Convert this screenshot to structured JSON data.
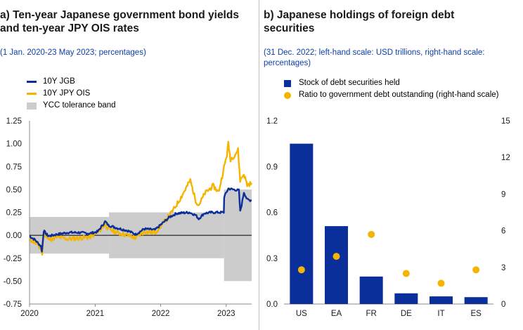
{
  "colors": {
    "jgb": "#0b2f9a",
    "ois": "#f5b400",
    "band": "#cccccc",
    "bar": "#0b2f9a",
    "dot": "#f5b400",
    "subtitle": "#0b3fa6"
  },
  "panel_a": {
    "title_line1": "a) Ten-year Japanese government bond yields",
    "title_line2": "and ten-year JPY OIS rates",
    "subtitle": "(1 Jan. 2020-23 May 2023; percentages)",
    "legend": [
      {
        "label": "10Y JGB",
        "kind": "line",
        "color": "#0b2f9a"
      },
      {
        "label": "10Y JPY OIS",
        "kind": "line",
        "color": "#f5b400"
      },
      {
        "label": "YCC tolerance band",
        "kind": "box",
        "color": "#cccccc"
      }
    ]
  },
  "panel_b": {
    "title_line1": "b) Japanese holdings of foreign debt",
    "title_line2": "securities",
    "subtitle_line1": "(31 Dec. 2022; left-hand scale: USD trillions, right-hand scale:",
    "subtitle_line2": "percentages)",
    "legend": [
      {
        "label": "Stock of debt securities held",
        "kind": "box",
        "color": "#0b2f9a"
      },
      {
        "label": "Ratio to government debt outstanding (right-hand scale)",
        "kind": "dot",
        "color": "#f5b400"
      }
    ]
  },
  "chart_data": [
    {
      "type": "line",
      "x_ticks": [
        "2020",
        "2021",
        "2022",
        "2023"
      ],
      "y_ticks": [
        "1.25",
        "1.00",
        "0.75",
        "0.50",
        "0.25",
        "0.00",
        "-0.25",
        "-0.50",
        "-0.75"
      ],
      "xlim": [
        "2020-01-01",
        "2023-05-23"
      ],
      "ylim": [
        -0.75,
        1.25
      ],
      "band": [
        {
          "from": "2020-01-01",
          "to": "2021-03-19",
          "low": -0.2,
          "high": 0.2
        },
        {
          "from": "2021-03-19",
          "to": "2022-12-20",
          "low": -0.25,
          "high": 0.25
        },
        {
          "from": "2022-12-20",
          "to": "2023-05-23",
          "low": -0.5,
          "high": 0.5
        }
      ],
      "series": [
        {
          "name": "10Y JGB",
          "points": [
            [
              "2020-01-01",
              -0.01
            ],
            [
              "2020-02-01",
              -0.05
            ],
            [
              "2020-03-05",
              -0.12
            ],
            [
              "2020-03-10",
              -0.18
            ],
            [
              "2020-03-20",
              0.05
            ],
            [
              "2020-04-15",
              -0.01
            ],
            [
              "2020-06-01",
              0.01
            ],
            [
              "2020-08-01",
              0.03
            ],
            [
              "2020-10-01",
              0.03
            ],
            [
              "2020-12-01",
              0.02
            ],
            [
              "2021-01-15",
              0.04
            ],
            [
              "2021-02-26",
              0.15
            ],
            [
              "2021-03-15",
              0.11
            ],
            [
              "2021-05-01",
              0.08
            ],
            [
              "2021-07-01",
              0.05
            ],
            [
              "2021-08-15",
              0.01
            ],
            [
              "2021-10-01",
              0.07
            ],
            [
              "2021-12-01",
              0.06
            ],
            [
              "2022-01-10",
              0.13
            ],
            [
              "2022-02-20",
              0.2
            ],
            [
              "2022-04-01",
              0.24
            ],
            [
              "2022-06-10",
              0.25
            ],
            [
              "2022-07-15",
              0.22
            ],
            [
              "2022-08-01",
              0.18
            ],
            [
              "2022-09-01",
              0.24
            ],
            [
              "2022-10-15",
              0.25
            ],
            [
              "2022-12-19",
              0.25
            ],
            [
              "2022-12-21",
              0.42
            ],
            [
              "2023-01-13",
              0.51
            ],
            [
              "2023-02-10",
              0.5
            ],
            [
              "2023-03-13",
              0.49
            ],
            [
              "2023-03-20",
              0.26
            ],
            [
              "2023-03-28",
              0.33
            ],
            [
              "2023-04-10",
              0.47
            ],
            [
              "2023-04-28",
              0.39
            ],
            [
              "2023-05-23",
              0.38
            ]
          ]
        },
        {
          "name": "10Y JPY OIS",
          "points": [
            [
              "2020-01-01",
              -0.04
            ],
            [
              "2020-02-01",
              -0.08
            ],
            [
              "2020-03-05",
              -0.15
            ],
            [
              "2020-03-12",
              -0.2
            ],
            [
              "2020-03-20",
              0.03
            ],
            [
              "2020-04-15",
              -0.05
            ],
            [
              "2020-06-01",
              -0.02
            ],
            [
              "2020-08-01",
              -0.04
            ],
            [
              "2020-10-01",
              -0.03
            ],
            [
              "2020-12-01",
              -0.02
            ],
            [
              "2021-01-15",
              0.03
            ],
            [
              "2021-02-26",
              0.12
            ],
            [
              "2021-03-15",
              0.07
            ],
            [
              "2021-05-01",
              0.03
            ],
            [
              "2021-07-01",
              0.0
            ],
            [
              "2021-08-15",
              -0.03
            ],
            [
              "2021-10-01",
              0.04
            ],
            [
              "2021-12-01",
              0.03
            ],
            [
              "2022-01-10",
              0.12
            ],
            [
              "2022-02-20",
              0.22
            ],
            [
              "2022-03-20",
              0.3
            ],
            [
              "2022-04-20",
              0.4
            ],
            [
              "2022-06-15",
              0.6
            ],
            [
              "2022-07-15",
              0.38
            ],
            [
              "2022-08-01",
              0.33
            ],
            [
              "2022-09-05",
              0.46
            ],
            [
              "2022-10-20",
              0.54
            ],
            [
              "2022-11-20",
              0.47
            ],
            [
              "2022-12-21",
              0.75
            ],
            [
              "2023-01-05",
              0.88
            ],
            [
              "2023-01-13",
              1.0
            ],
            [
              "2023-01-25",
              0.83
            ],
            [
              "2023-02-15",
              0.87
            ],
            [
              "2023-03-08",
              0.93
            ],
            [
              "2023-03-20",
              0.6
            ],
            [
              "2023-04-10",
              0.67
            ],
            [
              "2023-04-28",
              0.55
            ],
            [
              "2023-05-23",
              0.57
            ]
          ]
        }
      ]
    },
    {
      "type": "bar",
      "categories": [
        "US",
        "EA",
        "FR",
        "DE",
        "IT",
        "ES"
      ],
      "series": [
        {
          "name": "Stock of debt securities held",
          "axis": "left",
          "values": [
            1.05,
            0.51,
            0.18,
            0.07,
            0.05,
            0.045
          ]
        },
        {
          "name": "Ratio to government debt outstanding (right-hand scale)",
          "axis": "right",
          "values": [
            2.8,
            3.9,
            5.7,
            2.5,
            1.7,
            2.8
          ]
        }
      ],
      "left_ticks": [
        "1.2",
        "0.9",
        "0.6",
        "0.3",
        "0.0"
      ],
      "right_ticks": [
        "15",
        "12",
        "9",
        "6",
        "3",
        "0"
      ],
      "ylim_left": [
        0,
        1.2
      ],
      "ylim_right": [
        0,
        15
      ]
    }
  ]
}
